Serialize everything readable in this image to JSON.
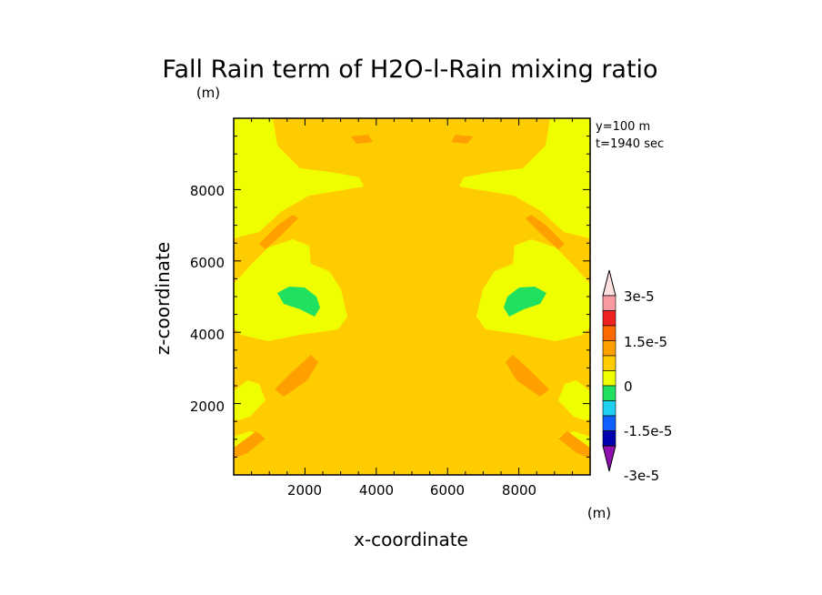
{
  "chart_data": {
    "type": "heatmap",
    "title": "Fall Rain term of H2O-l-Rain mixing ratio",
    "title_unit": "(m)",
    "xlabel": "x-coordinate",
    "ylabel": "z-coordinate",
    "xlim": [
      0,
      10000
    ],
    "ylim": [
      0,
      10000
    ],
    "x_ticks": [
      "2000",
      "4000",
      "6000",
      "8000"
    ],
    "y_ticks": [
      "2000",
      "4000",
      "6000",
      "8000"
    ],
    "annotations": [
      "y=100 m",
      "t=1940 sec"
    ],
    "colorbar": {
      "unit": "(m)",
      "tick_labels": [
        "3e-5",
        "1.5e-5",
        "0",
        "-1.5e-5",
        "-3e-5"
      ],
      "colors": [
        "#ffe0e0",
        "#f89aa0",
        "#ee2020",
        "#ff6a00",
        "#ffa000",
        "#ffcc00",
        "#f0ff00",
        "#20e060",
        "#20d0f0",
        "#1060ff",
        "#0000b0",
        "#9010b0"
      ]
    },
    "fill_colors": {
      "background": "#ffcc00",
      "positive_small": "#f0ff00",
      "negative_small": "#ffa000",
      "negative_mid": "#20e060"
    }
  }
}
